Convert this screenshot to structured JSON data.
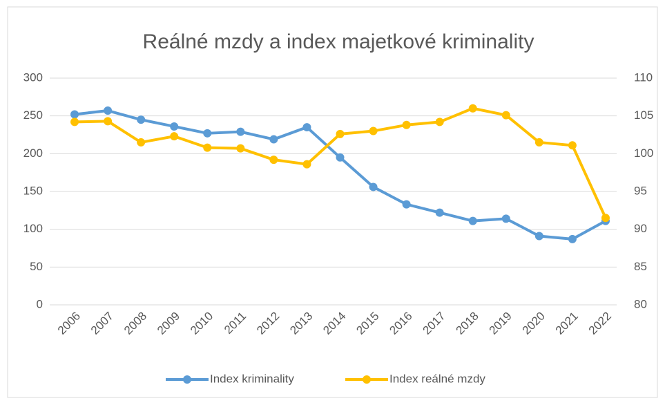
{
  "chart_data": {
    "type": "line",
    "title": "Reálné mzdy a index majetkové kriminality",
    "categories": [
      "2006",
      "2007",
      "2008",
      "2009",
      "2010",
      "2011",
      "2012",
      "2013",
      "2014",
      "2015",
      "2016",
      "2017",
      "2018",
      "2019",
      "2020",
      "2021",
      "2022"
    ],
    "series": [
      {
        "name": "Index kriminality",
        "color": "#5b9bd5",
        "values": [
          252,
          257,
          245,
          236,
          227,
          229,
          219,
          235,
          195,
          156,
          133,
          122,
          111,
          114,
          91,
          87,
          111
        ]
      },
      {
        "name": "Index reálné mzdy",
        "color": "#ffc000",
        "axis": "y2",
        "values": [
          104.2,
          104.3,
          101.5,
          102.3,
          100.8,
          100.7,
          99.2,
          98.6,
          102.6,
          103.0,
          103.8,
          104.2,
          106.0,
          105.1,
          101.5,
          101.1,
          91.5
        ]
      }
    ],
    "ylim": [
      0,
      300
    ],
    "yticks": [
      0,
      50,
      100,
      150,
      200,
      250,
      300
    ],
    "y2lim": [
      80,
      110
    ],
    "y2ticks": [
      80,
      85,
      90,
      95,
      100,
      105,
      110
    ],
    "grid": true,
    "legend": "bottom"
  }
}
